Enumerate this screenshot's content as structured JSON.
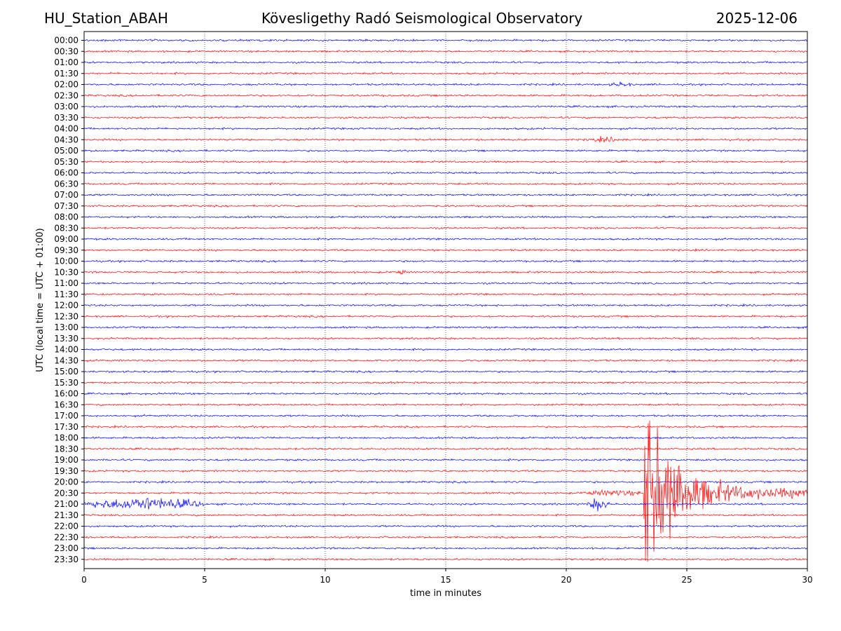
{
  "header": {
    "station": "HU_Station_ABAH",
    "observatory": "Kövesligethy Radó Seismological Observatory",
    "date": "2025-12-06"
  },
  "chart_data": {
    "type": "line",
    "title": "Kövesligethy Radó Seismological Observatory",
    "xlabel": "time in minutes",
    "ylabel": "UTC (local time = UTC + 01:00)",
    "xlim": [
      0,
      30
    ],
    "xticks": [
      0,
      5,
      10,
      15,
      20,
      25,
      30
    ],
    "grid_x": true,
    "line_labels": [
      "00:00",
      "00:30",
      "01:00",
      "01:30",
      "02:00",
      "02:30",
      "03:00",
      "03:30",
      "04:00",
      "04:30",
      "05:00",
      "05:30",
      "06:00",
      "06:30",
      "07:00",
      "07:30",
      "08:00",
      "08:30",
      "09:00",
      "09:30",
      "10:00",
      "10:30",
      "11:00",
      "11:30",
      "12:00",
      "12:30",
      "13:00",
      "13:30",
      "14:00",
      "14:30",
      "15:00",
      "15:30",
      "16:00",
      "16:30",
      "17:00",
      "17:30",
      "18:00",
      "18:30",
      "19:00",
      "19:30",
      "20:00",
      "20:30",
      "21:00",
      "21:30",
      "22:00",
      "22:30",
      "23:00",
      "23:30"
    ],
    "colors": [
      "#0000ff",
      "#ff0000"
    ],
    "noise_level": 0.14,
    "events": [
      {
        "line": "02:00",
        "start_min": 21.8,
        "end_min": 22.8,
        "amplitude": 0.45
      },
      {
        "line": "04:30",
        "start_min": 20.8,
        "end_min": 22.5,
        "amplitude": 0.45
      },
      {
        "line": "10:30",
        "start_min": 12.9,
        "end_min": 13.4,
        "amplitude": 0.45
      },
      {
        "line": "21:00",
        "start_min": 0.0,
        "end_min": 5.0,
        "amplitude": 1.1
      },
      {
        "line": "21:00",
        "start_min": 20.8,
        "end_min": 21.8,
        "amplitude": 1.0
      },
      {
        "line": "20:30",
        "start_min": 20.6,
        "end_min": 23.2,
        "amplitude": 0.55
      },
      {
        "line": "20:30",
        "start_min": 23.2,
        "end_min": 30.0,
        "amplitude": 19.0,
        "onset": "earthquake",
        "coda_level": 0.75
      }
    ]
  }
}
